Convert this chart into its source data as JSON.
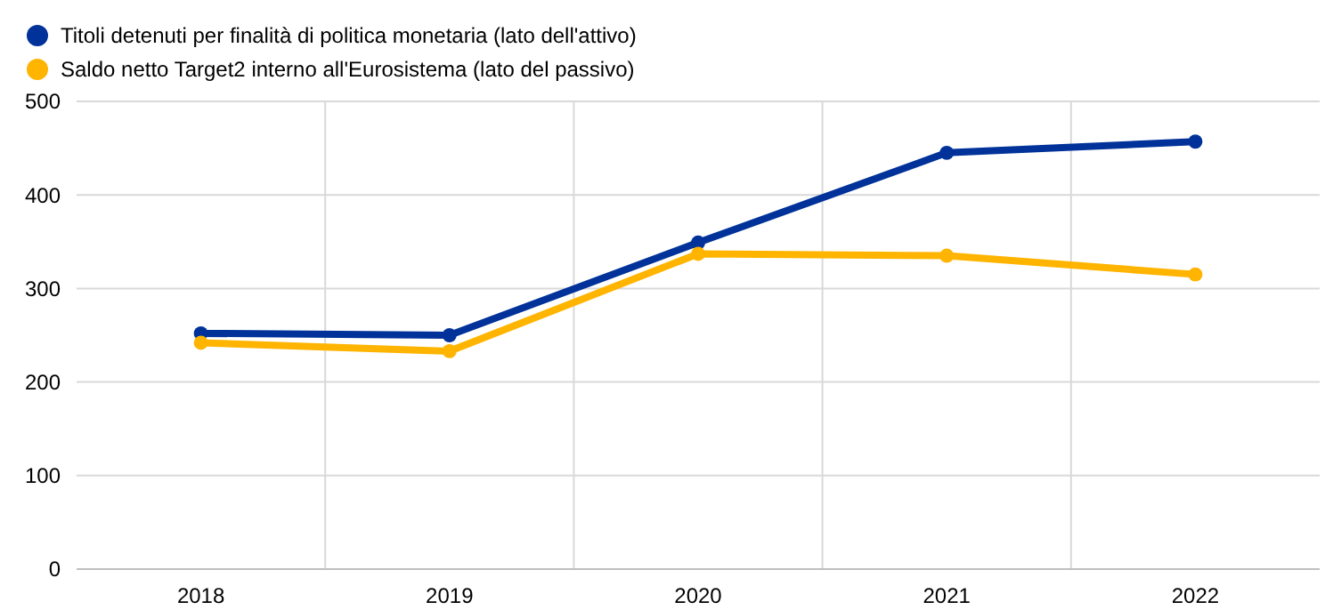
{
  "chart_data": {
    "type": "line",
    "categories": [
      "2018",
      "2019",
      "2020",
      "2021",
      "2022"
    ],
    "series": [
      {
        "name": "Titoli detenuti per finalità di politica monetaria (lato dell'attivo)",
        "color": "#003299",
        "values": [
          252,
          250,
          349,
          445,
          457
        ]
      },
      {
        "name": "Saldo netto Target2 interno all'Eurosistema (lato del passivo)",
        "color": "#ffb400",
        "values": [
          242,
          233,
          337,
          335,
          315
        ]
      }
    ],
    "ylim": [
      0,
      500
    ],
    "yticks": [
      0,
      100,
      200,
      300,
      400,
      500
    ],
    "grid": true,
    "legend": "top left",
    "marker": "circle",
    "line_style": "solid"
  }
}
